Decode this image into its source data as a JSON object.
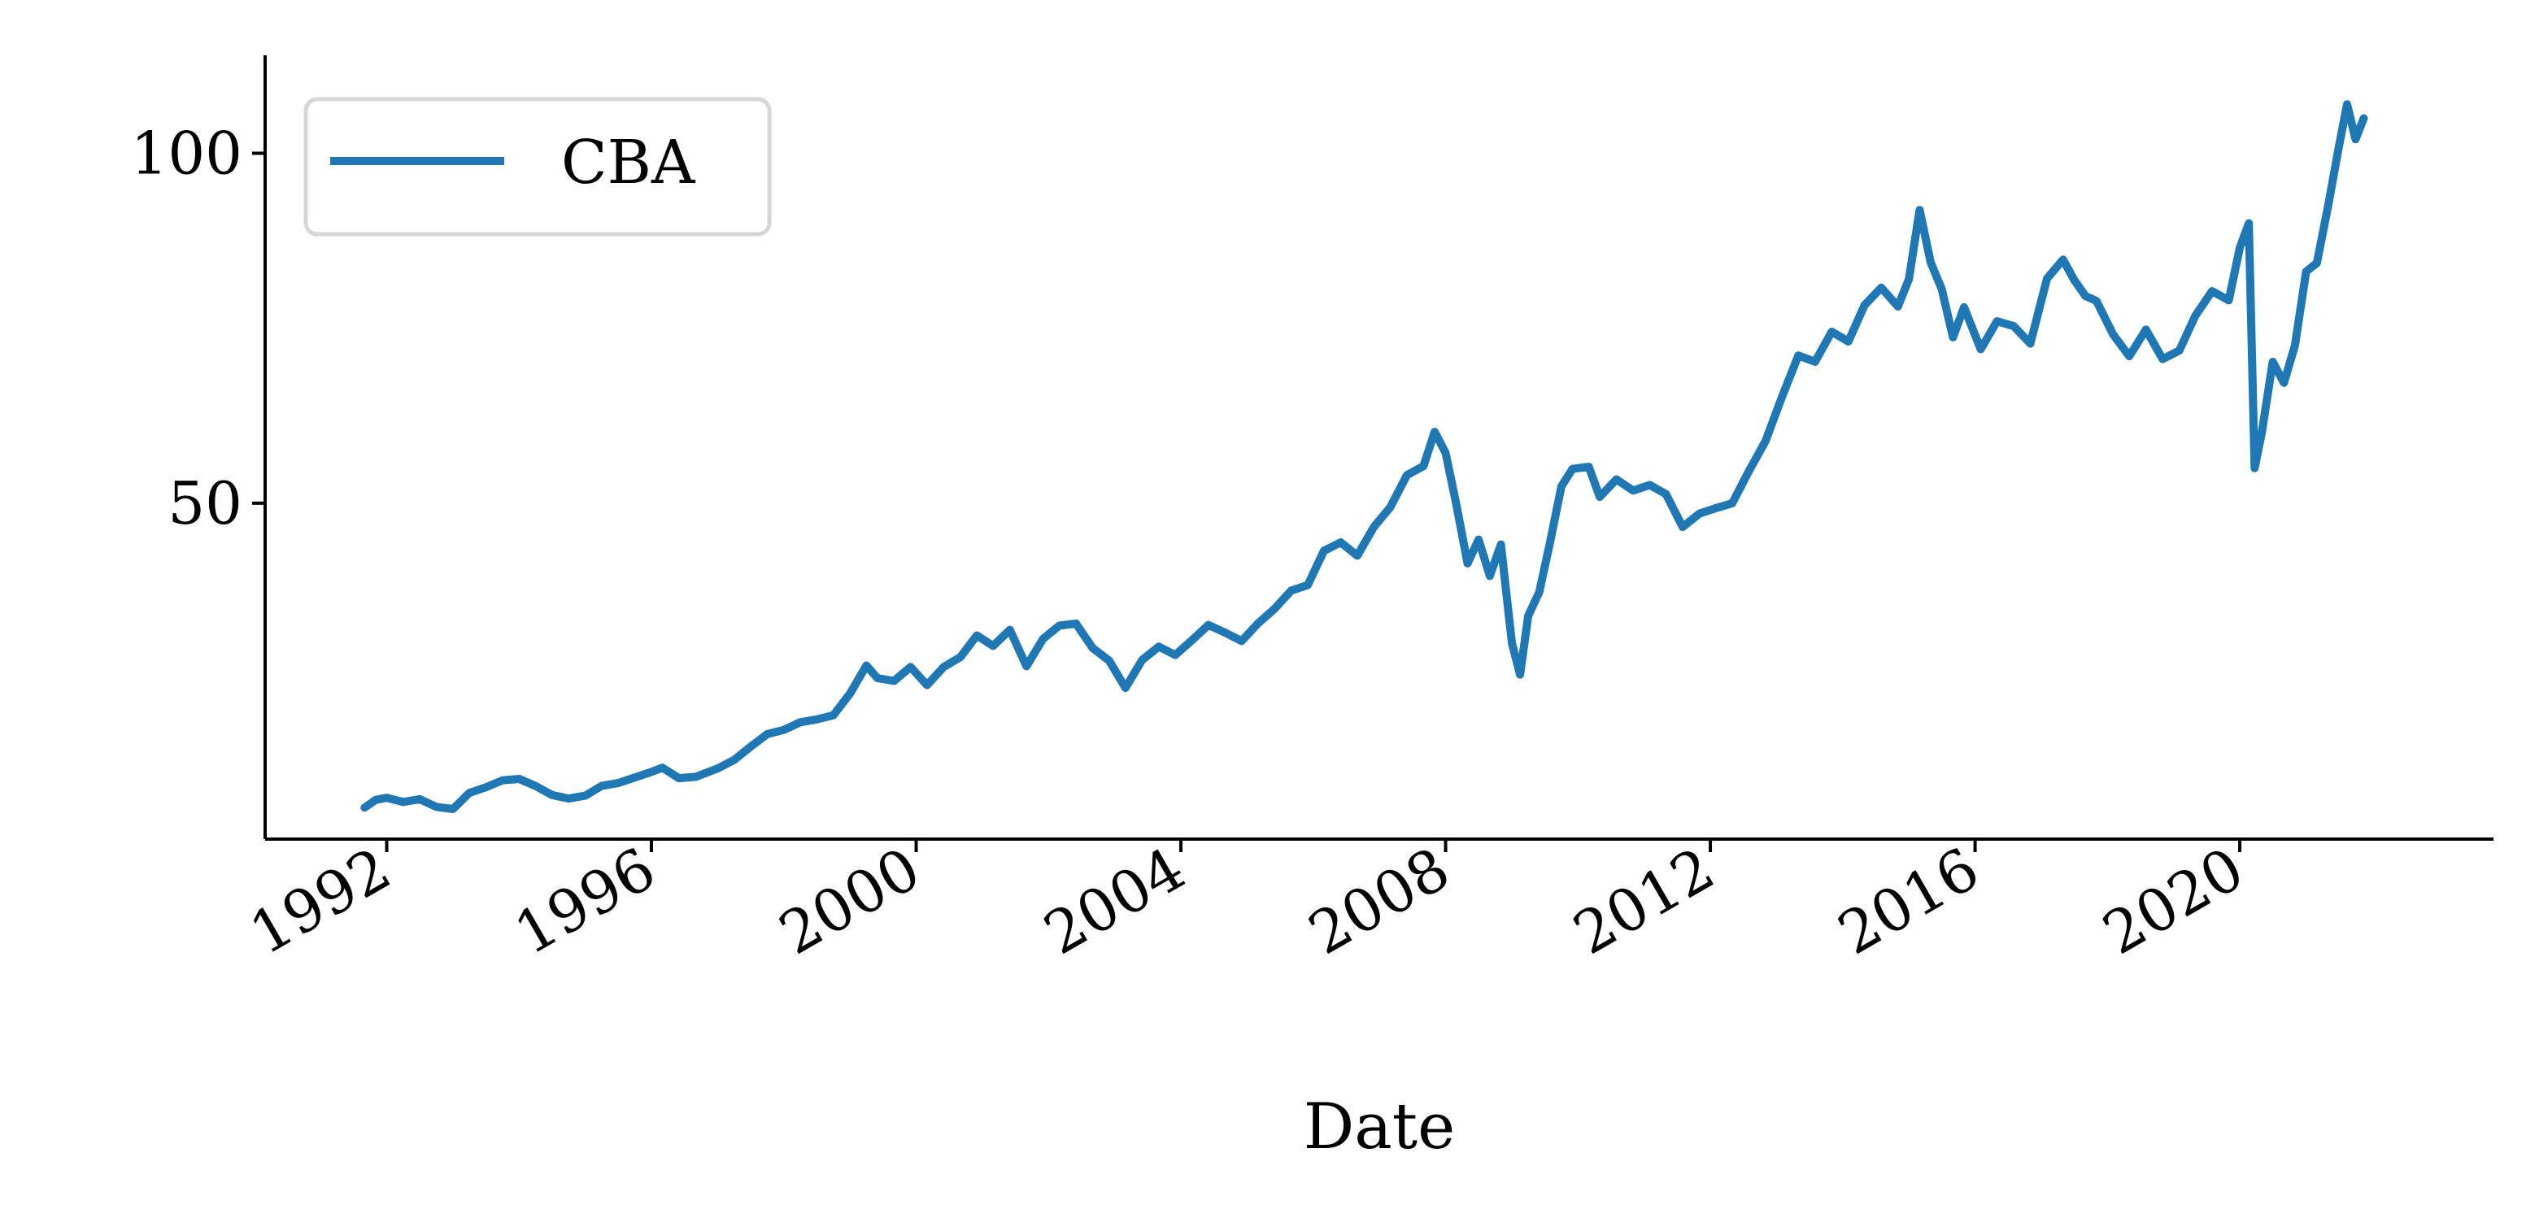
{
  "chart_data": {
    "type": "line",
    "xlabel": "Date",
    "ylabel": "",
    "title": "",
    "x_tick_labels": [
      "1992",
      "1996",
      "2000",
      "2004",
      "2008",
      "2012",
      "2016",
      "2020"
    ],
    "y_tick_labels": [
      "50",
      "100"
    ],
    "xlim": [
      "1990-03-01",
      "2023-11-01"
    ],
    "ylim": [
      2,
      114
    ],
    "grid": false,
    "legend_position": "top-left",
    "series": [
      {
        "name": "CBA",
        "color": "#1f77b4",
        "points": [
          [
            "1991-09-01",
            6.5
          ],
          [
            "1991-11-01",
            7.6
          ],
          [
            "1992-01-01",
            7.9
          ],
          [
            "1992-04-01",
            7.3
          ],
          [
            "1992-07-01",
            7.7
          ],
          [
            "1992-10-01",
            6.6
          ],
          [
            "1993-01-01",
            6.3
          ],
          [
            "1993-04-01",
            8.6
          ],
          [
            "1993-07-01",
            9.4
          ],
          [
            "1993-10-01",
            10.4
          ],
          [
            "1994-01-01",
            10.6
          ],
          [
            "1994-04-01",
            9.6
          ],
          [
            "1994-07-01",
            8.3
          ],
          [
            "1994-10-01",
            7.8
          ],
          [
            "1995-01-01",
            8.2
          ],
          [
            "1995-04-01",
            9.6
          ],
          [
            "1995-07-01",
            10.0
          ],
          [
            "1995-10-01",
            10.8
          ],
          [
            "1996-01-01",
            11.6
          ],
          [
            "1996-03-01",
            12.2
          ],
          [
            "1996-06-01",
            10.7
          ],
          [
            "1996-09-01",
            10.9
          ],
          [
            "1997-01-01",
            12.1
          ],
          [
            "1997-04-01",
            13.3
          ],
          [
            "1997-07-01",
            15.2
          ],
          [
            "1997-10-01",
            17.0
          ],
          [
            "1998-01-01",
            17.6
          ],
          [
            "1998-04-01",
            18.7
          ],
          [
            "1998-07-01",
            19.1
          ],
          [
            "1998-10-01",
            19.7
          ],
          [
            "1999-01-01",
            22.8
          ],
          [
            "1999-04-01",
            26.8
          ],
          [
            "1999-06-01",
            25.0
          ],
          [
            "1999-09-01",
            24.6
          ],
          [
            "1999-12-01",
            26.6
          ],
          [
            "2000-03-01",
            24.0
          ],
          [
            "2000-06-01",
            26.6
          ],
          [
            "2000-09-01",
            28.0
          ],
          [
            "2000-12-01",
            31.1
          ],
          [
            "2001-03-01",
            29.6
          ],
          [
            "2001-06-01",
            31.9
          ],
          [
            "2001-09-01",
            26.7
          ],
          [
            "2001-12-01",
            30.6
          ],
          [
            "2002-03-01",
            32.5
          ],
          [
            "2002-06-01",
            32.8
          ],
          [
            "2002-09-01",
            29.3
          ],
          [
            "2002-12-01",
            27.5
          ],
          [
            "2003-03-01",
            23.6
          ],
          [
            "2003-06-01",
            27.6
          ],
          [
            "2003-09-01",
            29.5
          ],
          [
            "2003-12-01",
            28.3
          ],
          [
            "2004-03-01",
            30.4
          ],
          [
            "2004-06-01",
            32.6
          ],
          [
            "2004-09-01",
            31.5
          ],
          [
            "2004-12-01",
            30.3
          ],
          [
            "2005-03-01",
            32.8
          ],
          [
            "2005-06-01",
            34.9
          ],
          [
            "2005-09-01",
            37.5
          ],
          [
            "2005-12-01",
            38.3
          ],
          [
            "2006-03-01",
            43.2
          ],
          [
            "2006-06-01",
            44.4
          ],
          [
            "2006-09-01",
            42.5
          ],
          [
            "2006-12-01",
            46.6
          ],
          [
            "2007-03-01",
            49.4
          ],
          [
            "2007-06-01",
            54.0
          ],
          [
            "2007-09-01",
            55.3
          ],
          [
            "2007-11-01",
            60.2
          ],
          [
            "2008-01-01",
            57.2
          ],
          [
            "2008-03-01",
            49.7
          ],
          [
            "2008-05-01",
            41.4
          ],
          [
            "2008-07-01",
            44.8
          ],
          [
            "2008-09-01",
            39.6
          ],
          [
            "2008-11-01",
            44.1
          ],
          [
            "2009-01-01",
            30.0
          ],
          [
            "2009-02-15",
            25.5
          ],
          [
            "2009-04-01",
            33.9
          ],
          [
            "2009-06-01",
            37.3
          ],
          [
            "2009-08-01",
            44.6
          ],
          [
            "2009-10-01",
            52.4
          ],
          [
            "2009-12-01",
            54.9
          ],
          [
            "2010-03-01",
            55.2
          ],
          [
            "2010-05-01",
            50.9
          ],
          [
            "2010-08-01",
            53.4
          ],
          [
            "2010-11-01",
            51.8
          ],
          [
            "2011-02-01",
            52.6
          ],
          [
            "2011-05-01",
            51.3
          ],
          [
            "2011-08-01",
            46.6
          ],
          [
            "2011-11-01",
            48.5
          ],
          [
            "2012-02-01",
            49.3
          ],
          [
            "2012-05-01",
            50.0
          ],
          [
            "2012-08-01",
            54.6
          ],
          [
            "2012-11-01",
            58.9
          ],
          [
            "2013-02-01",
            65.3
          ],
          [
            "2013-05-01",
            71.1
          ],
          [
            "2013-08-01",
            70.2
          ],
          [
            "2013-11-01",
            74.5
          ],
          [
            "2014-02-01",
            73.1
          ],
          [
            "2014-05-01",
            78.3
          ],
          [
            "2014-08-01",
            80.8
          ],
          [
            "2014-11-01",
            78.1
          ],
          [
            "2015-01-01",
            82.0
          ],
          [
            "2015-03-01",
            91.9
          ],
          [
            "2015-05-01",
            84.4
          ],
          [
            "2015-07-01",
            80.6
          ],
          [
            "2015-09-01",
            73.7
          ],
          [
            "2015-11-01",
            78.0
          ],
          [
            "2016-02-01",
            72.0
          ],
          [
            "2016-05-01",
            76.0
          ],
          [
            "2016-08-01",
            75.3
          ],
          [
            "2016-11-01",
            72.8
          ],
          [
            "2017-02-01",
            82.1
          ],
          [
            "2017-05-01",
            84.8
          ],
          [
            "2017-07-01",
            81.9
          ],
          [
            "2017-09-01",
            79.6
          ],
          [
            "2017-11-01",
            78.9
          ],
          [
            "2018-02-01",
            74.1
          ],
          [
            "2018-05-01",
            71.0
          ],
          [
            "2018-08-01",
            74.8
          ],
          [
            "2018-11-01",
            70.6
          ],
          [
            "2019-02-01",
            71.8
          ],
          [
            "2019-05-01",
            76.8
          ],
          [
            "2019-08-01",
            80.3
          ],
          [
            "2019-11-01",
            79.0
          ],
          [
            "2020-01-01",
            86.5
          ],
          [
            "2020-02-20",
            90.0
          ],
          [
            "2020-03-23",
            55.0
          ],
          [
            "2020-05-01",
            60.0
          ],
          [
            "2020-07-01",
            70.2
          ],
          [
            "2020-09-01",
            67.2
          ],
          [
            "2020-11-01",
            72.6
          ],
          [
            "2021-01-01",
            83.1
          ],
          [
            "2021-03-01",
            84.3
          ],
          [
            "2021-05-01",
            92.3
          ],
          [
            "2021-07-01",
            101.0
          ],
          [
            "2021-08-15",
            107.0
          ],
          [
            "2021-10-01",
            102.0
          ],
          [
            "2021-11-15",
            105.0
          ]
        ]
      }
    ]
  }
}
